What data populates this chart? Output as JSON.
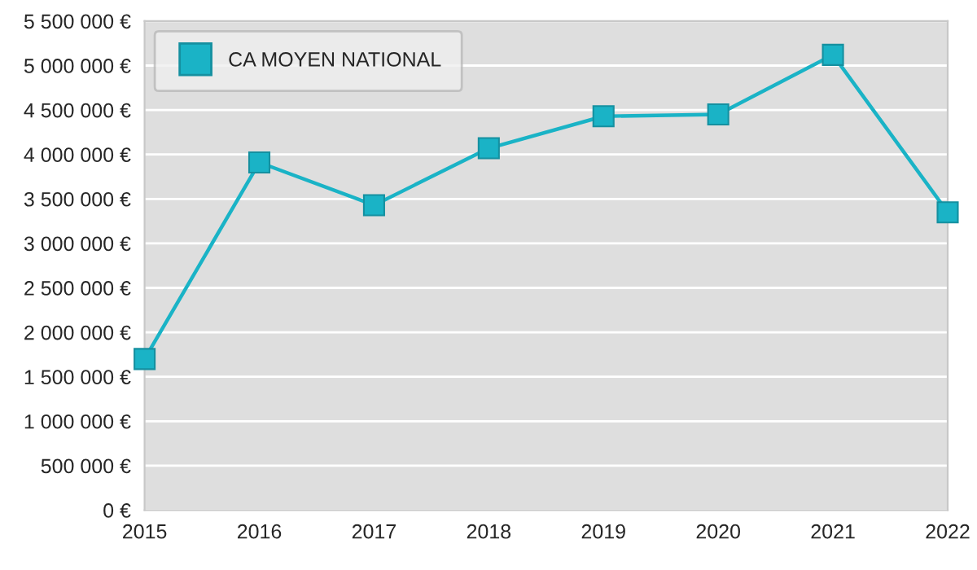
{
  "chart_data": {
    "type": "line",
    "x": [
      2015,
      2016,
      2017,
      2018,
      2019,
      2020,
      2021,
      2022
    ],
    "series": [
      {
        "name": "CA MOYEN NATIONAL",
        "color": "#1ab3c6",
        "values": [
          1700000,
          3910000,
          3430000,
          4070000,
          4430000,
          4450000,
          5120000,
          3350000
        ]
      }
    ],
    "xlim": [
      2015,
      2022
    ],
    "xticks": [
      2015,
      2016,
      2017,
      2018,
      2019,
      2020,
      2021,
      2022
    ],
    "ylim": [
      0,
      5500000
    ],
    "yticks": [
      {
        "value": 0,
        "label": "0 €"
      },
      {
        "value": 500000,
        "label": "500 000 €"
      },
      {
        "value": 1000000,
        "label": "1 000 000 €"
      },
      {
        "value": 1500000,
        "label": "1 500 000 €"
      },
      {
        "value": 2000000,
        "label": "2 000 000 €"
      },
      {
        "value": 2500000,
        "label": "2 500 000 €"
      },
      {
        "value": 3000000,
        "label": "3 000 000 €"
      },
      {
        "value": 3500000,
        "label": "3 500 000 €"
      },
      {
        "value": 4000000,
        "label": "4 000 000 €"
      },
      {
        "value": 4500000,
        "label": "4 500 000 €"
      },
      {
        "value": 5000000,
        "label": "5 000 000 €"
      },
      {
        "value": 5500000,
        "label": "5 500 000 €"
      }
    ],
    "grid": "y",
    "legend": "top left",
    "marker": "square",
    "line_style": "solid"
  }
}
